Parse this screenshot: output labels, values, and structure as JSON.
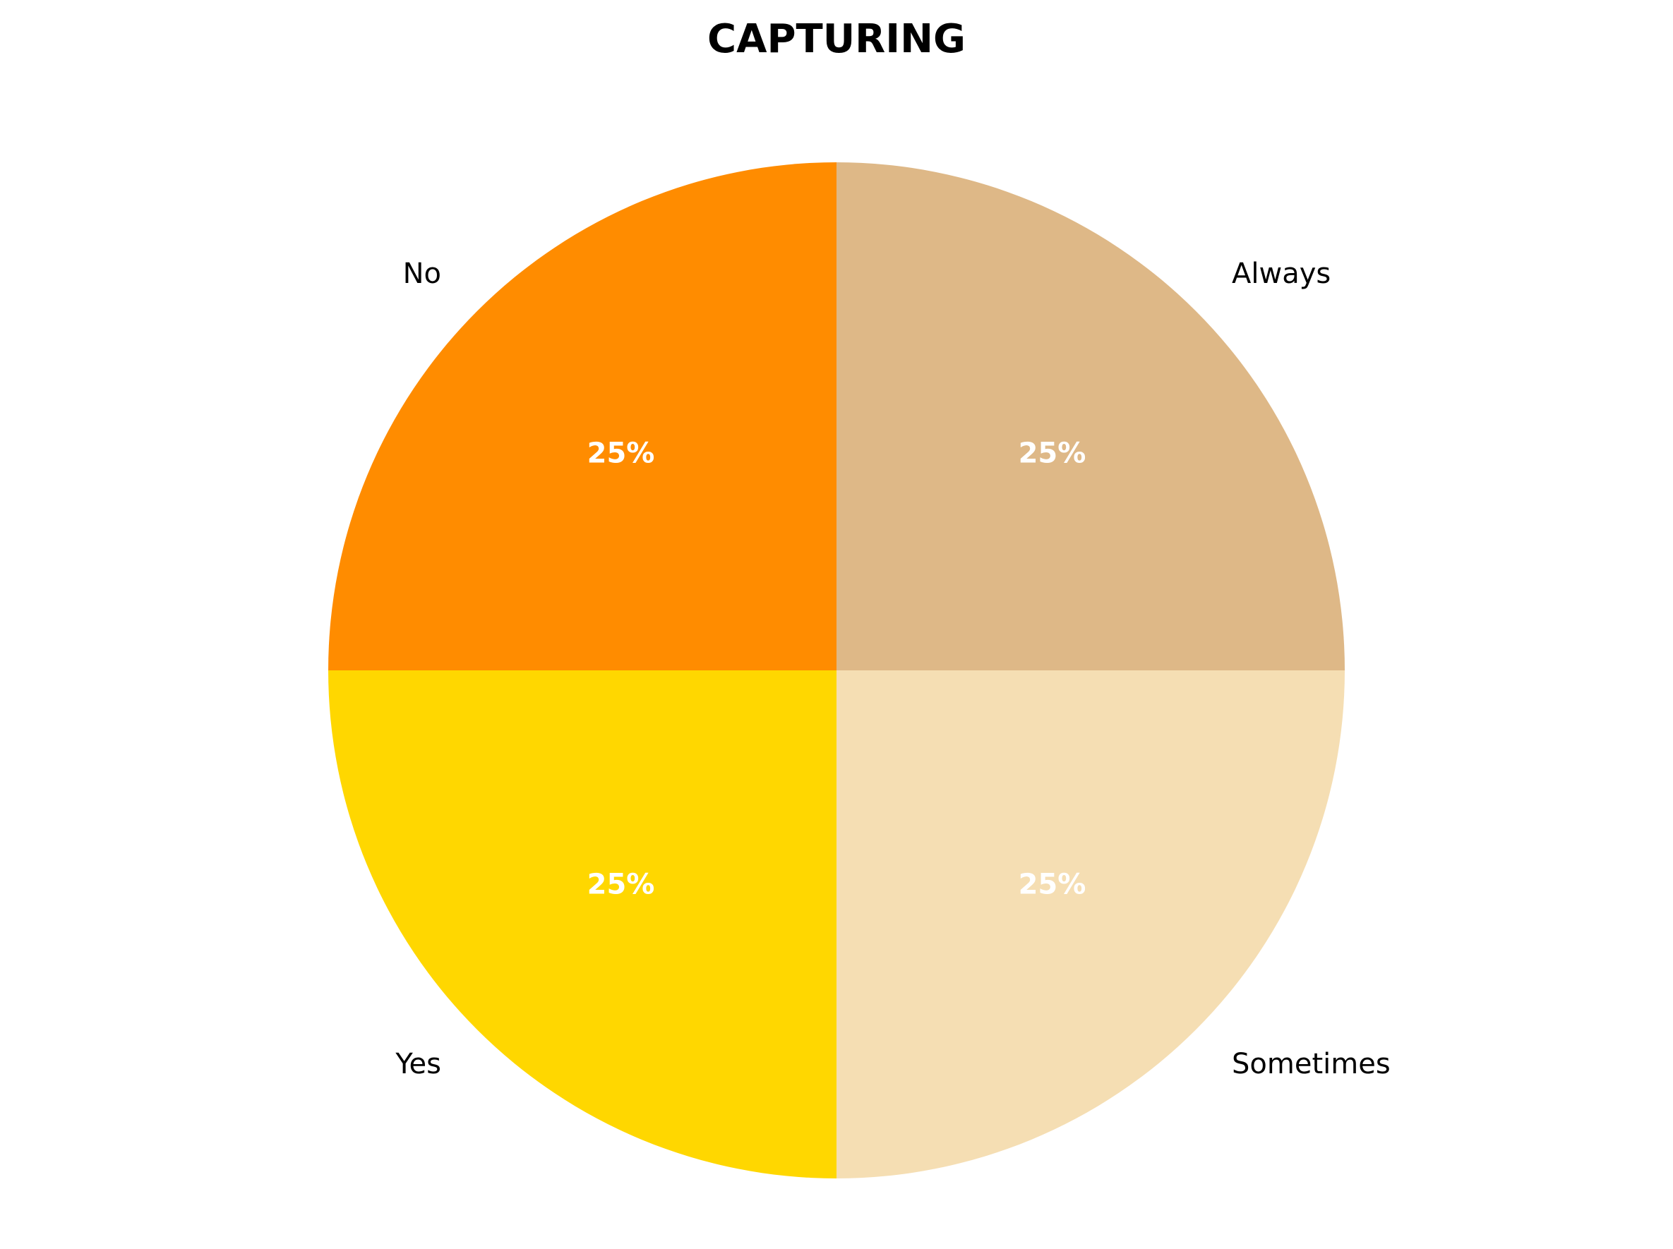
{
  "chart_data": {
    "type": "pie",
    "title": "CAPTURING",
    "slices": [
      {
        "label": "Always",
        "value": 25,
        "pct_label": "25%",
        "color": "#DEB887"
      },
      {
        "label": "Sometimes",
        "value": 25,
        "pct_label": "25%",
        "color": "#F5DEB3"
      },
      {
        "label": "Yes",
        "value": 25,
        "pct_label": "25%",
        "color": "#FFD700"
      },
      {
        "label": "No",
        "value": 25,
        "pct_label": "25%",
        "color": "#FF8C00"
      }
    ],
    "start_angle_deg": 90,
    "direction": "clockwise",
    "legend": "none"
  }
}
